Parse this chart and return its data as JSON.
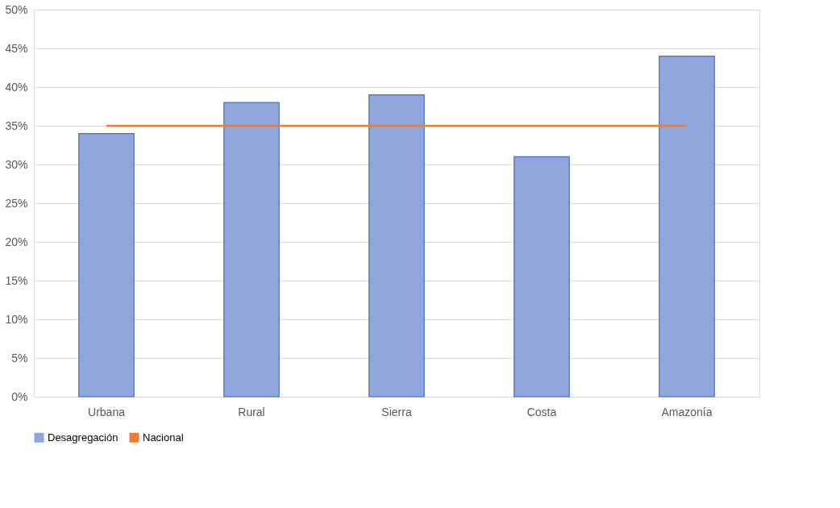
{
  "chart_data": {
    "type": "bar",
    "categories": [
      "Urbana",
      "Rural",
      "Sierra",
      "Costa",
      "Amazonía"
    ],
    "series": [
      {
        "name": "Desagregación",
        "color": "#8fa5dc",
        "values": [
          34,
          38,
          39,
          31,
          44
        ]
      },
      {
        "name": "Nacional",
        "type": "line",
        "color": "#ed7d31",
        "values": [
          35,
          35,
          35,
          35,
          35
        ]
      }
    ],
    "ylim": [
      0,
      50
    ],
    "yticks": [
      {
        "value": 0,
        "label": "0%"
      },
      {
        "value": 5,
        "label": "5%"
      },
      {
        "value": 10,
        "label": "10%"
      },
      {
        "value": 15,
        "label": "15%"
      },
      {
        "value": 20,
        "label": "20%"
      },
      {
        "value": 25,
        "label": "25%"
      },
      {
        "value": 30,
        "label": "30%"
      },
      {
        "value": 35,
        "label": "35%"
      },
      {
        "value": 40,
        "label": "40%"
      },
      {
        "value": 45,
        "label": "45%"
      },
      {
        "value": 50,
        "label": "50%"
      }
    ],
    "grid": "y",
    "legend": "bottom"
  }
}
